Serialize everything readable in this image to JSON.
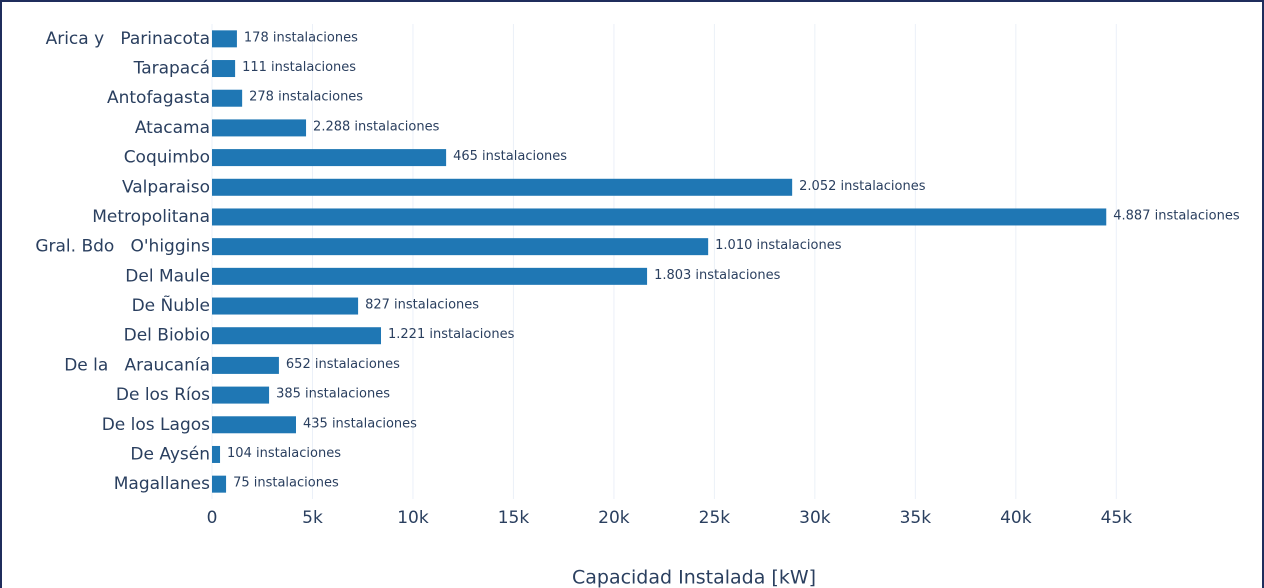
{
  "chart_data": {
    "type": "bar",
    "orientation": "horizontal",
    "categories": [
      "Arica y   Parinacota",
      "Tarapacá",
      "Antofagasta",
      "Atacama",
      "Coquimbo",
      "Valparaiso",
      "Metropolitana",
      "Gral. Bdo   O'higgins",
      "Del Maule",
      "De Ñuble",
      "Del Biobio",
      "De la   Araucanía",
      "De los Ríos",
      "De los Lagos",
      "De Aysén",
      "Magallanes"
    ],
    "values": [
      1240,
      1150,
      1500,
      4680,
      11650,
      28870,
      44500,
      24690,
      21650,
      7270,
      8410,
      3330,
      2840,
      4180,
      400,
      700
    ],
    "annotations": [
      "178 instalaciones",
      "111 instalaciones",
      "278 instalaciones",
      "2.288 instalaciones",
      "465 instalaciones",
      "2.052 instalaciones",
      "4.887 instalaciones",
      "1.010 instalaciones",
      "1.803 instalaciones",
      "827 instalaciones",
      "1.221 instalaciones",
      "652 instalaciones",
      "385 instalaciones",
      "435 instalaciones",
      "104 instalaciones",
      "75 instalaciones"
    ],
    "color": "#1f77b4",
    "x_label": "Capacidad Instalada [kW]",
    "xlim": [
      0,
      52250
    ],
    "xticks": [
      0,
      {
        "value": 5000,
        "label": "5k"
      },
      {
        "value": 10000,
        "label": "10k"
      },
      {
        "value": 15000,
        "label": "15k"
      },
      {
        "value": 20000,
        "label": "20k"
      },
      {
        "value": 25000,
        "label": "25k"
      },
      {
        "value": 30000,
        "label": "30k"
      },
      {
        "value": 35000,
        "label": "35k"
      },
      {
        "value": 40000,
        "label": "40k"
      },
      {
        "value": 45000,
        "label": "45k"
      }
    ],
    "grid": true
  }
}
